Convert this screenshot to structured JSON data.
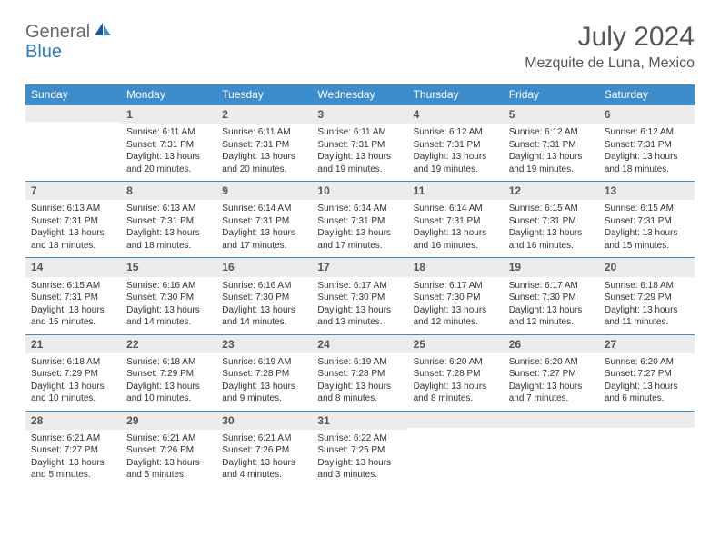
{
  "logo": {
    "part1": "General",
    "part2": "Blue"
  },
  "title": "July 2024",
  "location": "Mezquite de Luna, Mexico",
  "colors": {
    "header_bg": "#3d8ccc",
    "header_text": "#ffffff",
    "daynum_bg": "#ececec",
    "text": "#333333",
    "border": "#3d8ccc"
  },
  "weekdays": [
    "Sunday",
    "Monday",
    "Tuesday",
    "Wednesday",
    "Thursday",
    "Friday",
    "Saturday"
  ],
  "weeks": [
    [
      {
        "num": "",
        "lines": []
      },
      {
        "num": "1",
        "lines": [
          "Sunrise: 6:11 AM",
          "Sunset: 7:31 PM",
          "Daylight: 13 hours",
          "and 20 minutes."
        ]
      },
      {
        "num": "2",
        "lines": [
          "Sunrise: 6:11 AM",
          "Sunset: 7:31 PM",
          "Daylight: 13 hours",
          "and 20 minutes."
        ]
      },
      {
        "num": "3",
        "lines": [
          "Sunrise: 6:11 AM",
          "Sunset: 7:31 PM",
          "Daylight: 13 hours",
          "and 19 minutes."
        ]
      },
      {
        "num": "4",
        "lines": [
          "Sunrise: 6:12 AM",
          "Sunset: 7:31 PM",
          "Daylight: 13 hours",
          "and 19 minutes."
        ]
      },
      {
        "num": "5",
        "lines": [
          "Sunrise: 6:12 AM",
          "Sunset: 7:31 PM",
          "Daylight: 13 hours",
          "and 19 minutes."
        ]
      },
      {
        "num": "6",
        "lines": [
          "Sunrise: 6:12 AM",
          "Sunset: 7:31 PM",
          "Daylight: 13 hours",
          "and 18 minutes."
        ]
      }
    ],
    [
      {
        "num": "7",
        "lines": [
          "Sunrise: 6:13 AM",
          "Sunset: 7:31 PM",
          "Daylight: 13 hours",
          "and 18 minutes."
        ]
      },
      {
        "num": "8",
        "lines": [
          "Sunrise: 6:13 AM",
          "Sunset: 7:31 PM",
          "Daylight: 13 hours",
          "and 18 minutes."
        ]
      },
      {
        "num": "9",
        "lines": [
          "Sunrise: 6:14 AM",
          "Sunset: 7:31 PM",
          "Daylight: 13 hours",
          "and 17 minutes."
        ]
      },
      {
        "num": "10",
        "lines": [
          "Sunrise: 6:14 AM",
          "Sunset: 7:31 PM",
          "Daylight: 13 hours",
          "and 17 minutes."
        ]
      },
      {
        "num": "11",
        "lines": [
          "Sunrise: 6:14 AM",
          "Sunset: 7:31 PM",
          "Daylight: 13 hours",
          "and 16 minutes."
        ]
      },
      {
        "num": "12",
        "lines": [
          "Sunrise: 6:15 AM",
          "Sunset: 7:31 PM",
          "Daylight: 13 hours",
          "and 16 minutes."
        ]
      },
      {
        "num": "13",
        "lines": [
          "Sunrise: 6:15 AM",
          "Sunset: 7:31 PM",
          "Daylight: 13 hours",
          "and 15 minutes."
        ]
      }
    ],
    [
      {
        "num": "14",
        "lines": [
          "Sunrise: 6:15 AM",
          "Sunset: 7:31 PM",
          "Daylight: 13 hours",
          "and 15 minutes."
        ]
      },
      {
        "num": "15",
        "lines": [
          "Sunrise: 6:16 AM",
          "Sunset: 7:30 PM",
          "Daylight: 13 hours",
          "and 14 minutes."
        ]
      },
      {
        "num": "16",
        "lines": [
          "Sunrise: 6:16 AM",
          "Sunset: 7:30 PM",
          "Daylight: 13 hours",
          "and 14 minutes."
        ]
      },
      {
        "num": "17",
        "lines": [
          "Sunrise: 6:17 AM",
          "Sunset: 7:30 PM",
          "Daylight: 13 hours",
          "and 13 minutes."
        ]
      },
      {
        "num": "18",
        "lines": [
          "Sunrise: 6:17 AM",
          "Sunset: 7:30 PM",
          "Daylight: 13 hours",
          "and 12 minutes."
        ]
      },
      {
        "num": "19",
        "lines": [
          "Sunrise: 6:17 AM",
          "Sunset: 7:30 PM",
          "Daylight: 13 hours",
          "and 12 minutes."
        ]
      },
      {
        "num": "20",
        "lines": [
          "Sunrise: 6:18 AM",
          "Sunset: 7:29 PM",
          "Daylight: 13 hours",
          "and 11 minutes."
        ]
      }
    ],
    [
      {
        "num": "21",
        "lines": [
          "Sunrise: 6:18 AM",
          "Sunset: 7:29 PM",
          "Daylight: 13 hours",
          "and 10 minutes."
        ]
      },
      {
        "num": "22",
        "lines": [
          "Sunrise: 6:18 AM",
          "Sunset: 7:29 PM",
          "Daylight: 13 hours",
          "and 10 minutes."
        ]
      },
      {
        "num": "23",
        "lines": [
          "Sunrise: 6:19 AM",
          "Sunset: 7:28 PM",
          "Daylight: 13 hours",
          "and 9 minutes."
        ]
      },
      {
        "num": "24",
        "lines": [
          "Sunrise: 6:19 AM",
          "Sunset: 7:28 PM",
          "Daylight: 13 hours",
          "and 8 minutes."
        ]
      },
      {
        "num": "25",
        "lines": [
          "Sunrise: 6:20 AM",
          "Sunset: 7:28 PM",
          "Daylight: 13 hours",
          "and 8 minutes."
        ]
      },
      {
        "num": "26",
        "lines": [
          "Sunrise: 6:20 AM",
          "Sunset: 7:27 PM",
          "Daylight: 13 hours",
          "and 7 minutes."
        ]
      },
      {
        "num": "27",
        "lines": [
          "Sunrise: 6:20 AM",
          "Sunset: 7:27 PM",
          "Daylight: 13 hours",
          "and 6 minutes."
        ]
      }
    ],
    [
      {
        "num": "28",
        "lines": [
          "Sunrise: 6:21 AM",
          "Sunset: 7:27 PM",
          "Daylight: 13 hours",
          "and 5 minutes."
        ]
      },
      {
        "num": "29",
        "lines": [
          "Sunrise: 6:21 AM",
          "Sunset: 7:26 PM",
          "Daylight: 13 hours",
          "and 5 minutes."
        ]
      },
      {
        "num": "30",
        "lines": [
          "Sunrise: 6:21 AM",
          "Sunset: 7:26 PM",
          "Daylight: 13 hours",
          "and 4 minutes."
        ]
      },
      {
        "num": "31",
        "lines": [
          "Sunrise: 6:22 AM",
          "Sunset: 7:25 PM",
          "Daylight: 13 hours",
          "and 3 minutes."
        ]
      },
      {
        "num": "",
        "lines": []
      },
      {
        "num": "",
        "lines": []
      },
      {
        "num": "",
        "lines": []
      }
    ]
  ]
}
